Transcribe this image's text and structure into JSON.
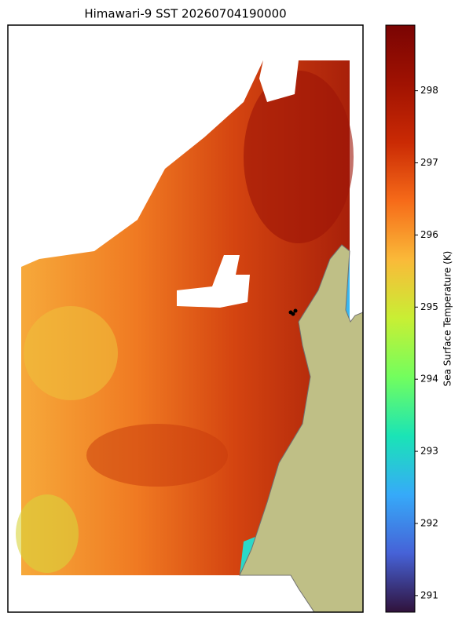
{
  "title": "Himawari-9 SST 20260704190000",
  "colorbar": {
    "label": "Sea Surface Temperature (K)",
    "lim": [
      290.77,
      298.91
    ],
    "ticks": [
      291,
      292,
      293,
      294,
      295,
      296,
      297,
      298
    ]
  }
}
